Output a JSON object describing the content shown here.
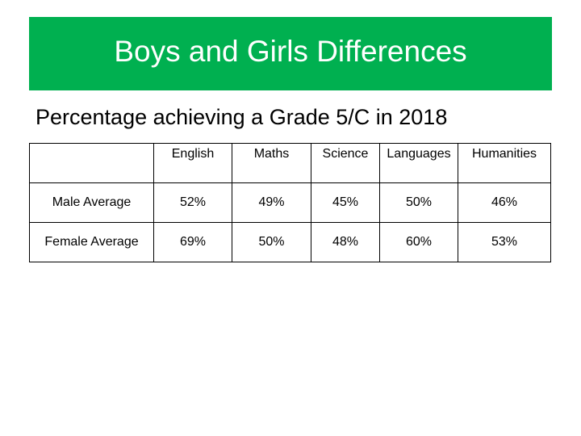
{
  "slide": {
    "title": "Boys and Girls Differences",
    "subtitle": "Percentage achieving a Grade 5/C in 2018"
  },
  "colors": {
    "title_bar": "#00b050",
    "title_text": "#ffffff"
  },
  "table": {
    "corner_header": "",
    "columns": [
      "English",
      "Maths",
      "Science",
      "Languages",
      "Humanities"
    ],
    "rows": [
      {
        "label": "Male Average",
        "values": [
          "52%",
          "49%",
          "45%",
          "50%",
          "46%"
        ]
      },
      {
        "label": "Female Average",
        "values": [
          "69%",
          "50%",
          "48%",
          "60%",
          "53%"
        ]
      }
    ]
  }
}
